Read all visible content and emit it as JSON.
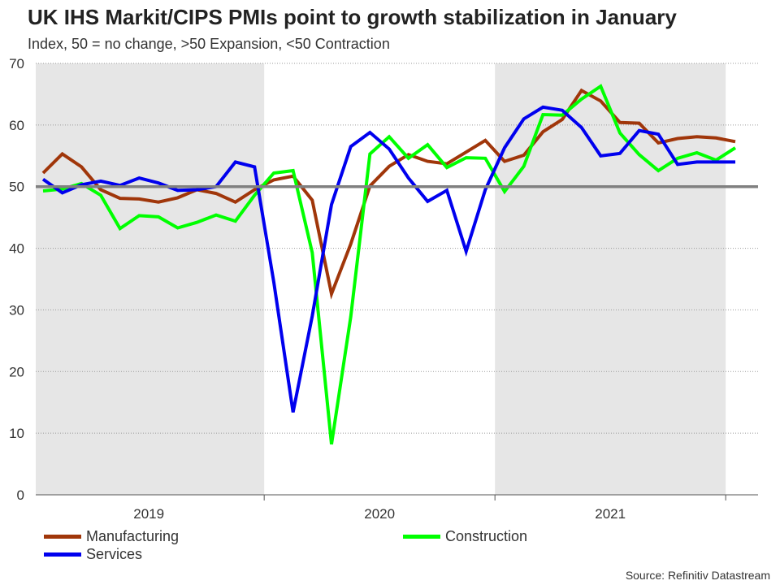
{
  "header": {
    "title": "UK IHS Markit/CIPS PMIs point to growth stabilization in January",
    "subtitle": "Index, 50 = no change, >50 Expansion, <50 Contraction"
  },
  "footer": {
    "source": "Source: Refinitiv Datastream"
  },
  "colors": {
    "manufacturing": "#a0360a",
    "construction": "#00ff00",
    "services": "#0000ee",
    "reference_line": "#808080",
    "shade": "#e6e6e6"
  },
  "chart_data": {
    "type": "line",
    "title": "UK IHS Markit/CIPS PMIs point to growth stabilization in January",
    "subtitle": "Index, 50 = no change, >50 Expansion, <50 Contraction",
    "xlabel": "",
    "ylabel": "",
    "ylim": [
      0,
      70
    ],
    "yticks": [
      0,
      10,
      20,
      30,
      40,
      50,
      60,
      70
    ],
    "grid": "horizontal dotted",
    "reference_line": 50,
    "year_labels": [
      "2019",
      "2020",
      "2021"
    ],
    "shaded_years": [
      "2019",
      "2021"
    ],
    "x_start": "2019-01",
    "x_end": "2022-01",
    "legend_position": "bottom",
    "series": [
      {
        "name": "Manufacturing",
        "values": [
          52.2,
          55.3,
          53.2,
          49.5,
          48.1,
          48.0,
          47.5,
          48.2,
          49.5,
          48.9,
          47.5,
          49.5,
          51.1,
          51.7,
          47.8,
          32.6,
          40.7,
          50.1,
          53.3,
          55.2,
          54.1,
          53.7,
          55.6,
          57.5,
          54.1,
          55.1,
          58.9,
          60.9,
          65.6,
          63.9,
          60.4,
          60.3,
          57.1,
          57.8,
          58.1,
          57.9,
          57.3
        ]
      },
      {
        "name": "Construction",
        "values": [
          49.3,
          49.6,
          50.5,
          48.6,
          43.2,
          45.3,
          45.1,
          43.3,
          44.2,
          45.4,
          44.4,
          48.6,
          52.2,
          52.6,
          39.3,
          8.2,
          28.9,
          55.3,
          58.1,
          54.6,
          56.8,
          53.1,
          54.7,
          54.6,
          49.2,
          53.3,
          61.7,
          61.6,
          64.2,
          66.3,
          58.7,
          55.2,
          52.6,
          54.6,
          55.5,
          54.3,
          56.3
        ]
      },
      {
        "name": "Services",
        "values": [
          51.2,
          49.0,
          50.3,
          50.9,
          50.2,
          51.4,
          50.6,
          49.4,
          49.5,
          50.0,
          54.0,
          53.2,
          34.5,
          13.4,
          29.0,
          47.1,
          56.5,
          58.8,
          56.1,
          51.4,
          47.6,
          49.4,
          39.5,
          49.5,
          56.3,
          61.0,
          62.9,
          62.4,
          59.6,
          55.0,
          55.4,
          59.1,
          58.5,
          53.6,
          54.0,
          54.0,
          54.0
        ]
      }
    ]
  }
}
